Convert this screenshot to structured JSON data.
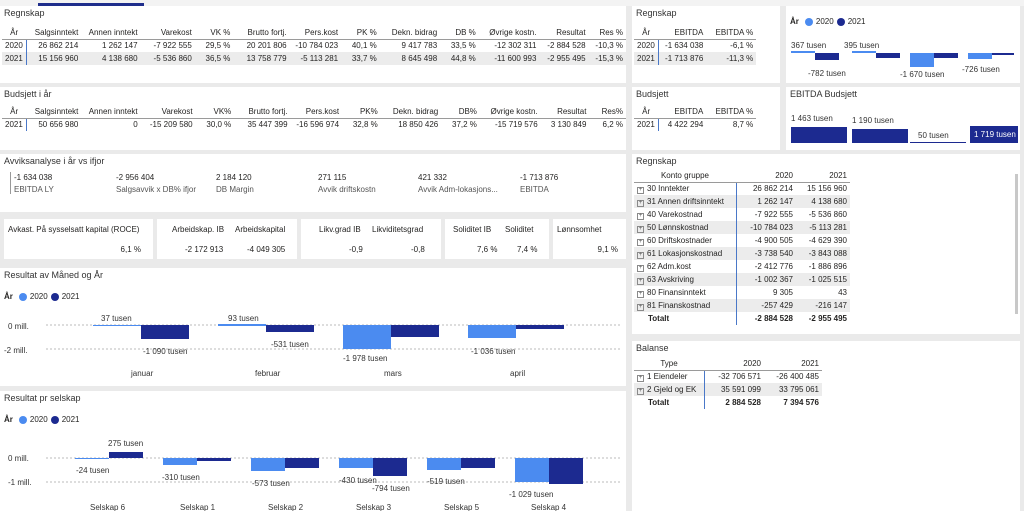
{
  "regnskap": {
    "title": "Regnskap",
    "headers": [
      "År",
      "Salgsinntekt",
      "Annen inntekt",
      "Varekost",
      "VK %",
      "Brutto fortj.",
      "Pers.kost",
      "PK %",
      "Dekn. bidrag",
      "DB %",
      "Øvrige kostn.",
      "Resultat",
      "Res %"
    ],
    "rows": [
      [
        "2020",
        "26 862 214",
        "1 262 147",
        "-7 922 555",
        "29,5 %",
        "20 201 806",
        "-10 784 023",
        "40,1 %",
        "9 417 783",
        "33,5 %",
        "-12 302 311",
        "-2 884 528",
        "-10,3 %"
      ],
      [
        "2021",
        "15 156 960",
        "4 138 680",
        "-5 536 860",
        "36,5 %",
        "13 758 779",
        "-5 113 281",
        "33,7 %",
        "8 645 498",
        "44,8 %",
        "-11 600 993",
        "-2 955 495",
        "-15,3 %"
      ]
    ]
  },
  "regnskap_ebitda": {
    "title": "Regnskap",
    "headers": [
      "År",
      "EBITDA",
      "EBITDA %"
    ],
    "rows": [
      [
        "2020",
        "-1 634 038",
        "-6,1 %"
      ],
      [
        "2021",
        "-1 713 876",
        "-11,3 %"
      ]
    ]
  },
  "ar_chart": {
    "legend_title": "År",
    "legend": [
      "2020",
      "2021"
    ],
    "labels_pos": [
      "367 tusen",
      "395 tusen"
    ],
    "labels_neg": [
      "-782 tusen",
      "-1 670 tusen",
      "-726 tusen"
    ]
  },
  "budsjett_ar": {
    "title": "Budsjett i år",
    "headers": [
      "År",
      "Salgsinntekt",
      "Annen inntekt",
      "Varekost",
      "VK%",
      "Brutto fortj.",
      "Pers.kost",
      "PK%",
      "Dekn. bidrag",
      "DB%",
      "Øvrige kostn.",
      "Resultat",
      "Res%"
    ],
    "row": [
      "2021",
      "50 656 980",
      "0",
      "-15 209 580",
      "30,0 %",
      "35 447 399",
      "-16 596 974",
      "32,8 %",
      "18 850 426",
      "37,2 %",
      "-15 719 576",
      "3 130 849",
      "6,2 %"
    ]
  },
  "budsjett": {
    "title": "Budsjett",
    "headers": [
      "År",
      "EBITDA",
      "EBITDA %"
    ],
    "row": [
      "2021",
      "4 422 294",
      "8,7 %"
    ]
  },
  "ebitda_budsjett": {
    "title": "EBITDA Budsjett",
    "labels": [
      "1 463 tusen",
      "1 190 tusen",
      "50 tusen",
      "1 719 tusen"
    ]
  },
  "avvik": {
    "title": "Avviksanalyse i år vs ifjor",
    "values": [
      "-1 634 038",
      "-2 956 404",
      "2 184 120",
      "271 115",
      "421 332",
      "-1 713 876"
    ],
    "labels": [
      "EBITDA LY",
      "Salgsavvik x DB% ifjor",
      "DB Margin",
      "Avvik driftskostn",
      "Avvik Adm-lokasjons...",
      "EBITDA"
    ]
  },
  "nokkeltall": {
    "roce_label": "Avkast. På sysselsatt kapital (ROCE)",
    "roce_value": "6,1 %",
    "arbkap_ib_label": "Arbeidskap. IB",
    "arbkap_ib_value": "-2 172 913",
    "arbkap_label": "Arbeidskapital",
    "arbkap_value": "-4 049 305",
    "likv_ib_label": "Likv.grad IB",
    "likv_ib_value": "-0,9",
    "likv_label": "Likviditetsgrad",
    "likv_value": "-0,8",
    "soliditet_ib_label": "Soliditet IB",
    "soliditet_ib_value": "7,6 %",
    "soliditet_label": "Soliditet",
    "soliditet_value": "7,4 %",
    "lonn_label": "Lønnsomhet",
    "lonn_value": "9,1 %"
  },
  "resultat_maned": {
    "title": "Resultat av Måned og År",
    "legend_title": "År",
    "legend": [
      "2020",
      "2021"
    ],
    "y_labels": [
      "0 mill.",
      "-2 mill."
    ],
    "categories": [
      "januar",
      "februar",
      "mars",
      "april"
    ],
    "labels_2020": [
      "37 tusen",
      "93 tusen",
      "-1 978 tusen",
      "-1 036 tusen"
    ],
    "labels_2021": [
      "-1 090 tusen",
      "-531 tusen",
      "",
      ""
    ]
  },
  "resultat_selskap": {
    "title": "Resultat pr selskap",
    "legend_title": "År",
    "legend": [
      "2020",
      "2021"
    ],
    "y_labels": [
      "0 mill.",
      "-1 mill."
    ],
    "categories": [
      "Selskap 6",
      "Selskap 1",
      "Selskap 2",
      "Selskap 3",
      "Selskap 5",
      "Selskap 4"
    ],
    "labels_2020": [
      "-24 tusen",
      "-310 tusen",
      "-573 tusen",
      "-430 tusen",
      "-519 tusen",
      "-1 029 tusen"
    ],
    "labels_2021": [
      "275 tusen",
      "",
      "",
      "-794 tusen",
      "",
      ""
    ]
  },
  "regnskap_konto": {
    "title": "Regnskap",
    "headers": [
      "Konto gruppe",
      "2020",
      "2021"
    ],
    "rows": [
      [
        "30 Inntekter",
        "26 862 214",
        "15 156 960"
      ],
      [
        "31 Annen driftsinntekt",
        "1 262 147",
        "4 138 680"
      ],
      [
        "40 Varekostnad",
        "-7 922 555",
        "-5 536 860"
      ],
      [
        "50 Lønnskostnad",
        "-10 784 023",
        "-5 113 281"
      ],
      [
        "60 Driftskostnader",
        "-4 900 505",
        "-4 629 390"
      ],
      [
        "61 Lokasjonskostnad",
        "-3 738 540",
        "-3 843 088"
      ],
      [
        "62 Adm.kost",
        "-2 412 776",
        "-1 886 896"
      ],
      [
        "63 Avskriving",
        "-1 002 367",
        "-1 025 515"
      ],
      [
        "80 Finansinntekt",
        "9 305",
        "43"
      ],
      [
        "81 Finanskostnad",
        "-257 429",
        "-216 147"
      ]
    ],
    "total": [
      "Totalt",
      "-2 884 528",
      "-2 955 495"
    ]
  },
  "balanse": {
    "title": "Balanse",
    "headers": [
      "Type",
      "2020",
      "2021"
    ],
    "rows": [
      [
        "1 Eiendeler",
        "-32 706 571",
        "-26 400 485"
      ],
      [
        "2 Gjeld og EK",
        "35 591 099",
        "33 795 061"
      ]
    ],
    "total": [
      "Totalt",
      "2 884 528",
      "7 394 576"
    ]
  },
  "colors": {
    "c2020": "#4b8bf0",
    "c2021": "#1c2a90",
    "accent": "#1f2e8c"
  }
}
